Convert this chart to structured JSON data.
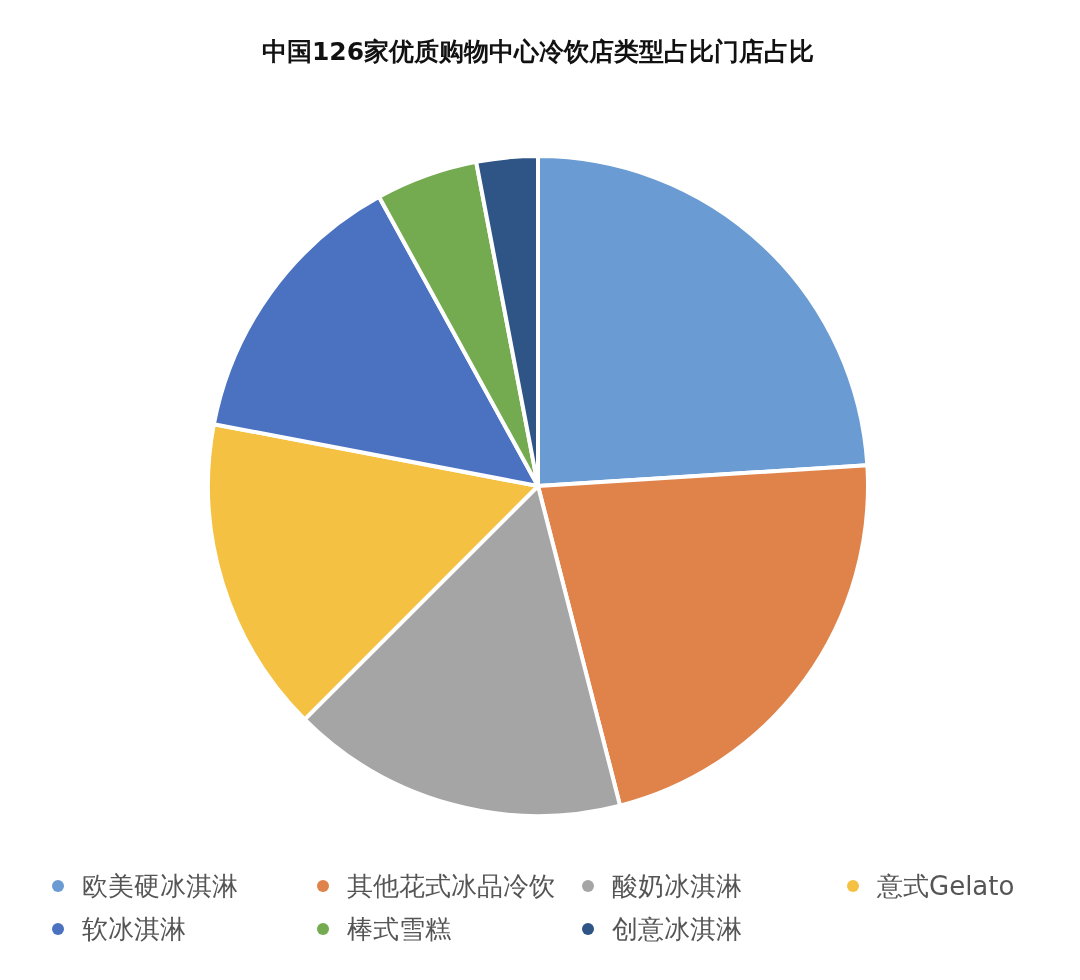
{
  "chart_data": {
    "type": "pie",
    "title": "中国126家优质购物中心冷饮店类型占比门店占比",
    "categories": [
      "欧美硬冰淇淋",
      "其他花式冰品冷饮",
      "酸奶冰淇淋",
      "意式Gelato",
      "软冰淇淋",
      "棒式雪糕",
      "创意冰淇淋"
    ],
    "values": [
      24,
      22,
      16.5,
      15.5,
      14,
      5,
      3
    ],
    "colors": [
      "#6a9bd2",
      "#e0834a",
      "#a5a5a5",
      "#f5c143",
      "#4a72c1",
      "#74aa50",
      "#2f5587"
    ],
    "legend": "bottom"
  }
}
